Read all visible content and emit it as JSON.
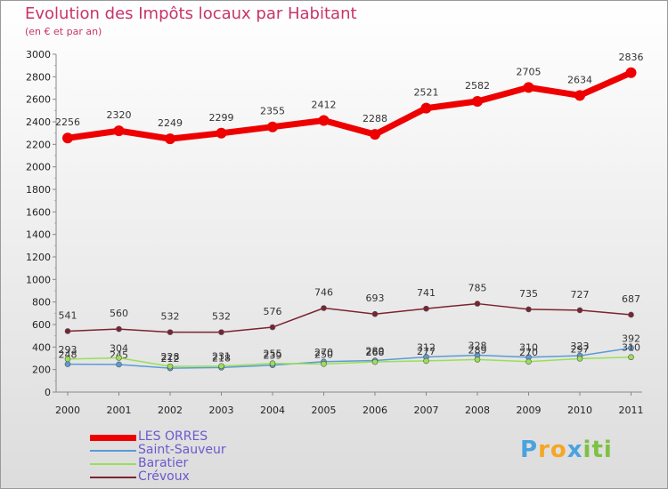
{
  "chart_data": {
    "type": "line",
    "title": "Evolution des Impôts locaux par Habitant",
    "subtitle": "(en € et par an)",
    "xlabel": "",
    "ylabel": "",
    "categories": [
      "2000",
      "2001",
      "2002",
      "2003",
      "2004",
      "2005",
      "2006",
      "2007",
      "2008",
      "2009",
      "2010",
      "2011"
    ],
    "ylim": [
      0,
      3000
    ],
    "yticks": [
      0,
      200,
      400,
      600,
      800,
      1000,
      1200,
      1400,
      1600,
      1800,
      2000,
      2200,
      2400,
      2600,
      2800,
      3000
    ],
    "grid": false,
    "legend_position": "bottom-left",
    "series": [
      {
        "name": "LES ORRES",
        "color": "#ee0000",
        "values": [
          2256,
          2320,
          2249,
          2299,
          2355,
          2412,
          2288,
          2521,
          2582,
          2705,
          2634,
          2836
        ]
      },
      {
        "name": "Saint-Sauveur",
        "color": "#5b9bd5",
        "values": [
          248,
          245,
          212,
          218,
          239,
          270,
          280,
          312,
          328,
          310,
          323,
          392
        ]
      },
      {
        "name": "Baratier",
        "color": "#99e055",
        "values": [
          293,
          304,
          228,
          231,
          255,
          250,
          268,
          277,
          289,
          270,
          297,
          310
        ]
      },
      {
        "name": "Crévoux",
        "color": "#7b2330",
        "values": [
          541,
          560,
          532,
          532,
          576,
          746,
          693,
          741,
          785,
          735,
          727,
          687
        ]
      }
    ]
  },
  "logo": {
    "letters": [
      "P",
      "r",
      "o",
      "x",
      "i",
      "t",
      "i"
    ],
    "colors": [
      "#4aa3df",
      "#f5a623",
      "#f5a623",
      "#4aa3df",
      "#7cc242",
      "#7cc242",
      "#7cc242"
    ]
  }
}
